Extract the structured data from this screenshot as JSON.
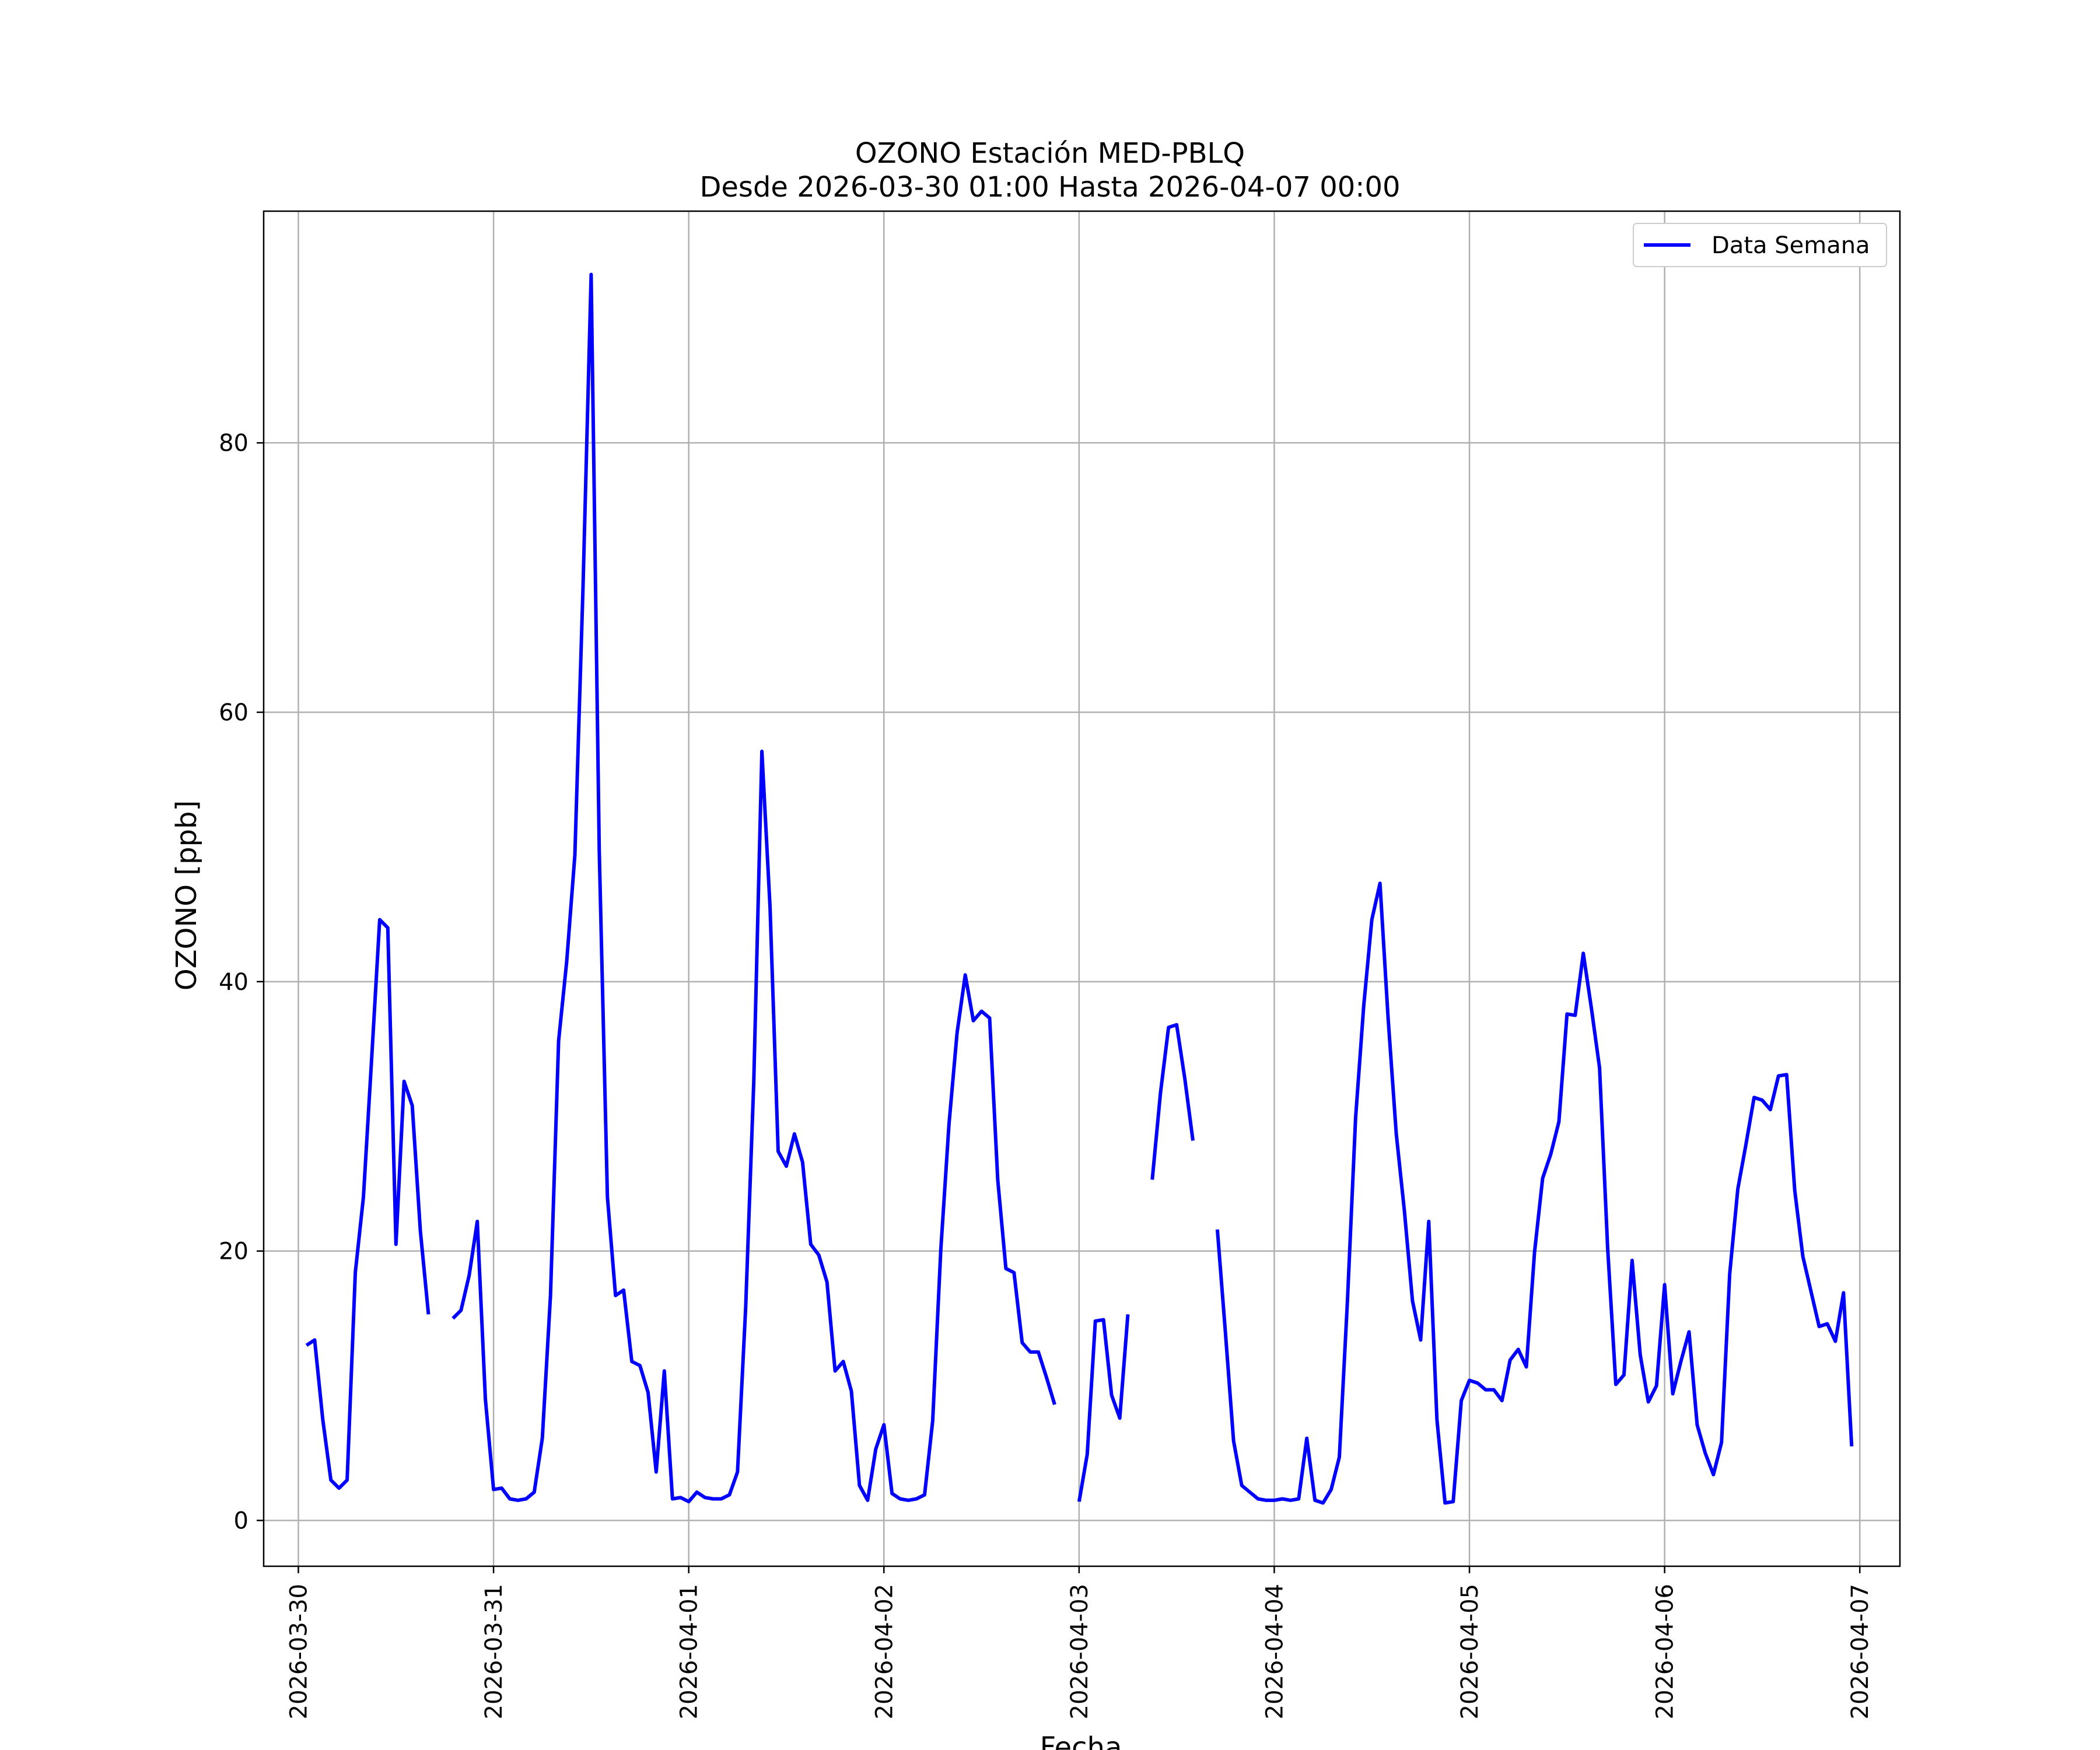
{
  "chart_data": {
    "type": "line",
    "title": "OZONO Estación MED-PBLQ",
    "subtitle": "Desde 2026-03-30 01:00 Hasta 2026-04-07 00:00",
    "xlabel": "Fecha",
    "ylabel": "OZONO [ppb]",
    "xlim": [
      "2026-03-29 19:44",
      "2026-04-07 04:56"
    ],
    "ylim": [
      -3.4,
      97.2
    ],
    "x_ticks": [
      "2026-03-30",
      "2026-03-31",
      "2026-04-01",
      "2026-04-02",
      "2026-04-03",
      "2026-04-04",
      "2026-04-05",
      "2026-04-06",
      "2026-04-07"
    ],
    "y_ticks": [
      0,
      20,
      40,
      60,
      80
    ],
    "grid": true,
    "legend_position": "top-right",
    "line_color": "#0000ff",
    "series": [
      {
        "name": "Data Semana",
        "start": "2026-03-30 01:00",
        "step_hours": 1,
        "values": [
          13.0,
          13.4,
          7.5,
          3.0,
          2.4,
          3.0,
          18.4,
          24.0,
          34.2,
          44.6,
          44.0,
          20.5,
          32.6,
          30.8,
          21.5,
          15.3,
          null,
          null,
          15.0,
          15.6,
          18.2,
          22.2,
          9.0,
          2.3,
          2.4,
          1.6,
          1.5,
          1.6,
          2.1,
          6.1,
          16.7,
          35.6,
          41.5,
          49.4,
          69.2,
          92.5,
          49.7,
          24.0,
          16.7,
          17.1,
          11.8,
          11.5,
          9.5,
          3.6,
          11.1,
          1.6,
          1.7,
          1.4,
          2.1,
          1.7,
          1.6,
          1.6,
          1.9,
          3.6,
          15.8,
          32.6,
          57.1,
          45.5,
          27.4,
          26.3,
          28.7,
          26.6,
          20.5,
          19.7,
          17.7,
          11.1,
          11.8,
          9.6,
          2.6,
          1.5,
          5.3,
          7.1,
          2.0,
          1.6,
          1.5,
          1.6,
          1.9,
          7.4,
          20.1,
          29.4,
          36.2,
          40.5,
          37.1,
          37.8,
          37.3,
          25.3,
          18.7,
          18.4,
          13.2,
          12.5,
          12.5,
          10.6,
          8.6,
          null,
          null,
          1.4,
          4.9,
          14.8,
          14.9,
          9.3,
          7.6,
          15.3,
          null,
          null,
          25.3,
          31.7,
          36.6,
          36.8,
          32.8,
          28.2,
          null,
          null,
          21.6,
          13.9,
          5.9,
          2.6,
          2.1,
          1.6,
          1.5,
          1.5,
          1.6,
          1.5,
          1.6,
          6.1,
          1.5,
          1.3,
          2.3,
          4.7,
          16.3,
          29.9,
          38.2,
          44.6,
          47.3,
          37.3,
          28.7,
          23.0,
          16.3,
          13.4,
          22.2,
          7.5,
          1.3,
          1.4,
          8.9,
          10.4,
          10.2,
          9.7,
          9.7,
          8.9,
          11.9,
          12.7,
          11.4,
          19.9,
          25.4,
          27.2,
          29.6,
          37.6,
          37.5,
          42.1,
          38.0,
          33.6,
          20.2,
          10.1,
          10.8,
          19.3,
          12.3,
          8.8,
          10.0,
          17.5,
          9.4,
          11.8,
          14.0,
          7.1,
          5.0,
          3.4,
          5.8,
          18.3,
          24.6,
          27.9,
          31.4,
          31.2,
          30.5,
          33.0,
          33.1,
          24.5,
          19.6,
          17.0,
          14.4,
          14.6,
          13.3,
          16.9,
          5.5
        ]
      }
    ]
  }
}
